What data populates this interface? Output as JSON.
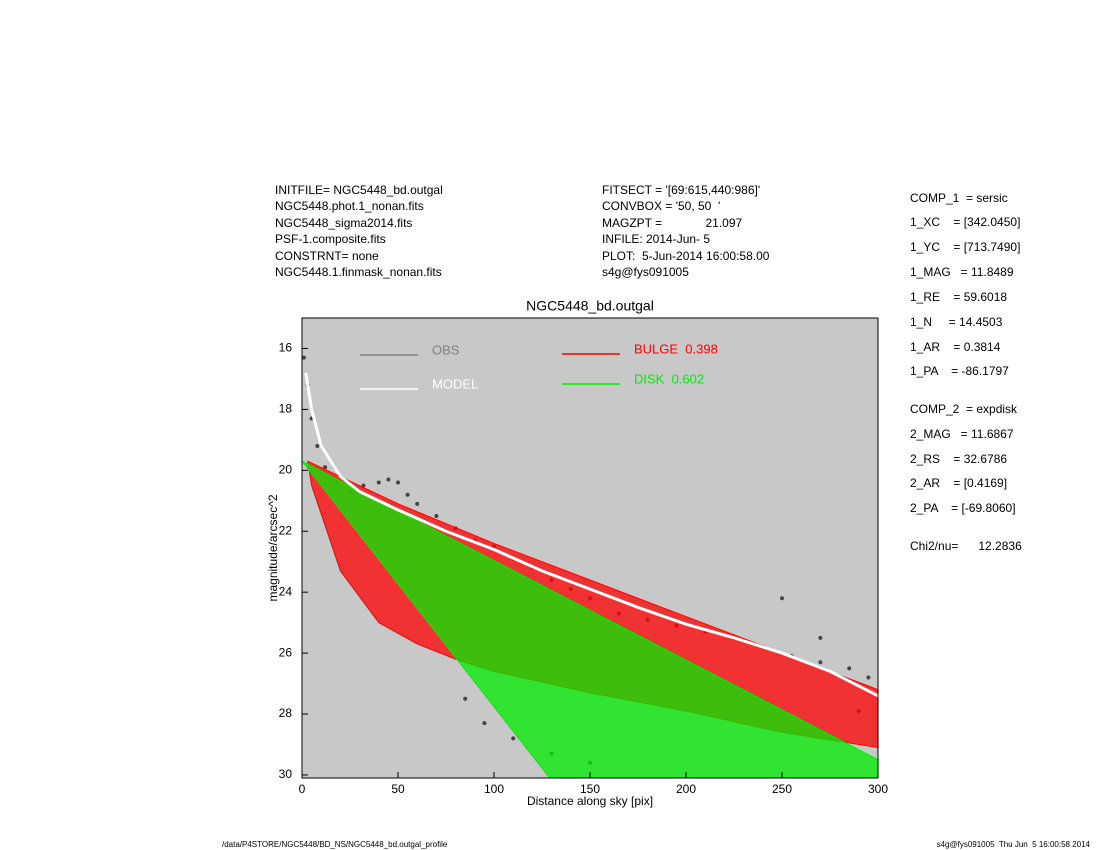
{
  "header": {
    "left": [
      "INITFILE= NGC5448_bd.outgal",
      "NGC5448.phot.1_nonan.fits",
      "NGC5448_sigma2014.fits",
      "PSF-1.composite.fits",
      "CONSTRNT= none",
      "NGC5448.1.finmask_nonan.fits"
    ],
    "middle": [
      "FITSECT = '[69:615,440:986]'",
      "CONVBOX = '50, 50  '",
      "MAGZPT =             21.097",
      "INFILE: 2014-Jun- 5",
      "PLOT:  5-Jun-2014 16:00:58.00",
      "s4g@fys091005"
    ],
    "params": [
      "COMP_1  = sersic",
      "1_XC    = [342.0450]",
      "1_YC    = [713.7490]",
      "1_MAG   = 11.8489",
      "1_RE    = 59.6018",
      "1_N     = 14.4503",
      "1_AR    = 0.3814",
      "1_PA    = -86.1797",
      "COMP_2  = expdisk",
      "2_MAG   = 11.6867",
      "2_RS    = 32.6786",
      "2_AR    = [0.4169]",
      "2_PA    = [-69.8060]",
      "Chi2/nu=      12.2836"
    ]
  },
  "footer": {
    "left": "/data/P4STORE/NGC5448/BD_NS/NGC5448_bd.outgal_profile",
    "right": "s4g@fys091005  Thu Jun  5 16:00:58 2014"
  },
  "chart_data": {
    "type": "profile",
    "title": "NGC5448_bd.outgal",
    "xlabel": "Distance along sky [pix]",
    "ylabel": "magnitude/arcsec^2",
    "xlim": [
      0,
      300
    ],
    "ylim": [
      30.1,
      15
    ],
    "xticks": [
      0,
      50,
      100,
      150,
      200,
      250,
      300
    ],
    "yticks": [
      16,
      18,
      20,
      22,
      24,
      26,
      28,
      30
    ],
    "background": "#c8c8c8",
    "series": [
      {
        "name": "OBS",
        "color": "#444444",
        "legend_color": "#808080",
        "kind": "points",
        "x": [
          1,
          3,
          5,
          8,
          12,
          18,
          25,
          32,
          40,
          45,
          50,
          55,
          60,
          70,
          80,
          90,
          100,
          110,
          120,
          130,
          140,
          150,
          165,
          180,
          195,
          210,
          225,
          240,
          255,
          270,
          285,
          295,
          85,
          95,
          110,
          130,
          150,
          250,
          270,
          290
        ],
        "values": [
          16.3,
          17.2,
          18.3,
          19.2,
          19.9,
          20.4,
          20.7,
          20.5,
          20.4,
          20.3,
          20.4,
          20.8,
          21.1,
          21.5,
          21.9,
          22.3,
          22.5,
          22.9,
          23.2,
          23.6,
          23.9,
          24.2,
          24.7,
          24.9,
          25.1,
          25.3,
          25.5,
          25.8,
          26.1,
          26.3,
          26.5,
          26.8,
          27.5,
          28.3,
          28.8,
          29.3,
          29.6,
          24.2,
          25.5,
          27.9
        ]
      },
      {
        "name": "MODEL",
        "color": "#ffffff",
        "kind": "line",
        "x": [
          2,
          5,
          10,
          20,
          30,
          50,
          75,
          100,
          125,
          150,
          175,
          200,
          225,
          250,
          275,
          300
        ],
        "values": [
          16.8,
          18.0,
          19.2,
          20.2,
          20.7,
          21.3,
          22.0,
          22.6,
          23.3,
          23.9,
          24.5,
          25.05,
          25.5,
          26.0,
          26.6,
          27.4
        ]
      },
      {
        "name": "BULGE  0.398",
        "color": "#ff0000",
        "kind": "band",
        "x": [
          3,
          50,
          100,
          150,
          200,
          250,
          300
        ],
        "values": [
          19.7,
          21.1,
          22.4,
          23.6,
          24.8,
          26.0,
          27.2
        ],
        "x2": [
          5,
          20,
          40,
          60,
          80,
          100,
          150,
          200,
          250,
          300
        ],
        "values2": [
          20.5,
          23.3,
          25.0,
          25.7,
          26.2,
          26.6,
          27.3,
          27.9,
          28.6,
          29.1
        ]
      },
      {
        "name": "DISK  0.602",
        "color": "#00ee00",
        "kind": "band",
        "x": [
          0,
          300
        ],
        "values": [
          19.7,
          29.5
        ],
        "x2": [
          0,
          129,
          300
        ],
        "values2": [
          19.7,
          30.1,
          30.1
        ]
      }
    ]
  }
}
